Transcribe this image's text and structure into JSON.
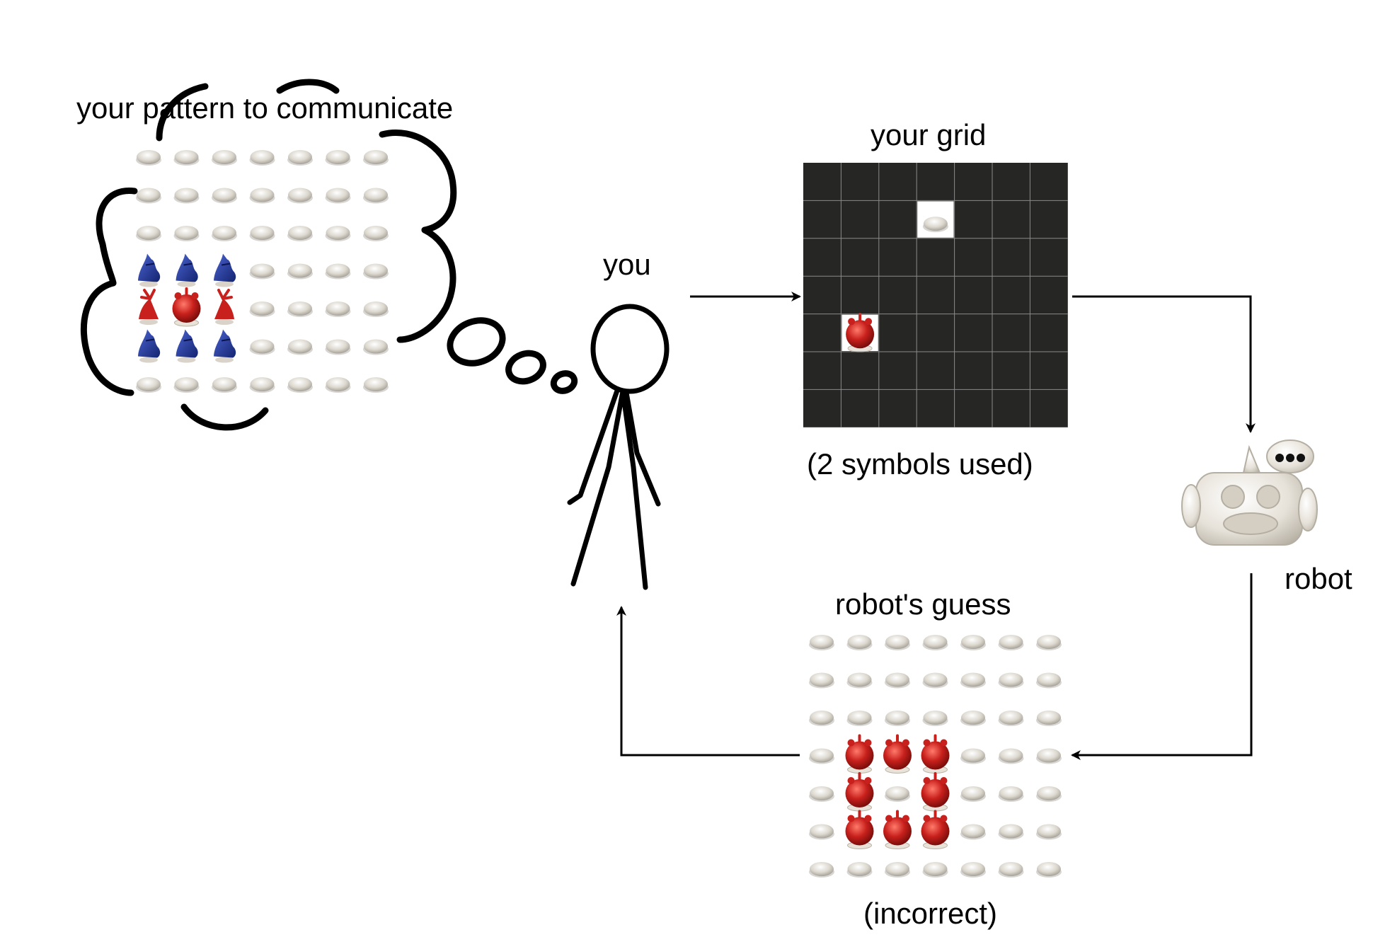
{
  "labels": {
    "thought": "your pattern to communicate",
    "you": "you",
    "your_grid": "your grid",
    "symbols_used": "(2 symbols used)",
    "robot": "robot",
    "robots_guess": "robot's guess",
    "verdict": "(incorrect)"
  },
  "pattern_grid": {
    "rows": [
      [
        "pill",
        "pill",
        "pill",
        "pill",
        "pill",
        "pill",
        "pill"
      ],
      [
        "pill",
        "pill",
        "pill",
        "pill",
        "pill",
        "pill",
        "pill"
      ],
      [
        "pill",
        "pill",
        "pill",
        "pill",
        "pill",
        "pill",
        "pill"
      ],
      [
        "blue-figure",
        "blue-figure",
        "blue-figure",
        "pill",
        "pill",
        "pill",
        "pill"
      ],
      [
        "red-figure-left",
        "red-ball",
        "red-figure-right",
        "pill",
        "pill",
        "pill",
        "pill"
      ],
      [
        "blue-figure",
        "blue-figure",
        "blue-figure",
        "pill",
        "pill",
        "pill",
        "pill"
      ],
      [
        "pill",
        "pill",
        "pill",
        "pill",
        "pill",
        "pill",
        "pill"
      ]
    ]
  },
  "your_grid": {
    "rows": [
      [
        "empty",
        "empty",
        "empty",
        "empty",
        "empty",
        "empty",
        "empty"
      ],
      [
        "empty",
        "empty",
        "empty",
        "pill",
        "empty",
        "empty",
        "empty"
      ],
      [
        "empty",
        "empty",
        "empty",
        "empty",
        "empty",
        "empty",
        "empty"
      ],
      [
        "empty",
        "empty",
        "empty",
        "empty",
        "empty",
        "empty",
        "empty"
      ],
      [
        "empty",
        "red-ball",
        "empty",
        "empty",
        "empty",
        "empty",
        "empty"
      ],
      [
        "empty",
        "empty",
        "empty",
        "empty",
        "empty",
        "empty",
        "empty"
      ],
      [
        "empty",
        "empty",
        "empty",
        "empty",
        "empty",
        "empty",
        "empty"
      ]
    ]
  },
  "guess_grid": {
    "rows": [
      [
        "pill",
        "pill",
        "pill",
        "pill",
        "pill",
        "pill",
        "pill"
      ],
      [
        "pill",
        "pill",
        "pill",
        "pill",
        "pill",
        "pill",
        "pill"
      ],
      [
        "pill",
        "pill",
        "pill",
        "pill",
        "pill",
        "pill",
        "pill"
      ],
      [
        "pill",
        "red-ball",
        "red-ball",
        "red-ball",
        "pill",
        "pill",
        "pill"
      ],
      [
        "pill",
        "red-ball",
        "pill",
        "red-ball",
        "pill",
        "pill",
        "pill"
      ],
      [
        "pill",
        "red-ball",
        "red-ball",
        "red-ball",
        "pill",
        "pill",
        "pill"
      ],
      [
        "pill",
        "pill",
        "pill",
        "pill",
        "pill",
        "pill",
        "pill"
      ]
    ]
  },
  "colors": {
    "grid_bg": "#262624",
    "grid_line": "#8a8a8a",
    "pill": "#dcd8cf",
    "red": "#c8201c",
    "blue": "#1b2f8c",
    "robot_body": "#e6e1d8"
  }
}
